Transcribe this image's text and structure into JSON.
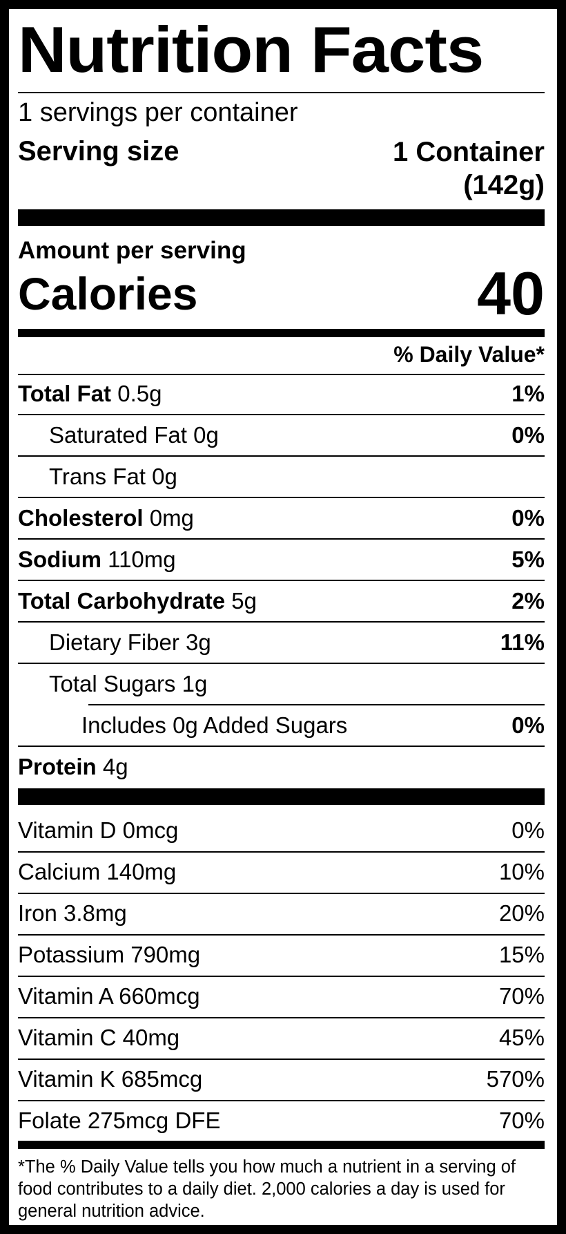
{
  "title": "Nutrition Facts",
  "servings_per_container": "1 servings per container",
  "serving_size_label": "Serving size",
  "serving_size_value_line1": "1 Container",
  "serving_size_value_line2": "(142g)",
  "amount_per_serving": "Amount per serving",
  "calories_label": "Calories",
  "calories_value": "40",
  "daily_value_header": "% Daily Value*",
  "nutrients": [
    {
      "name": "Total Fat",
      "amount": " 0.5g",
      "dv": "1%"
    },
    {
      "name": "Saturated Fat 0g",
      "dv": "0%"
    },
    {
      "name": "Trans Fat 0g",
      "dv": ""
    },
    {
      "name": "Cholesterol",
      "amount": " 0mg",
      "dv": "0%"
    },
    {
      "name": "Sodium",
      "amount": " 110mg",
      "dv": "5%"
    },
    {
      "name": "Total Carbohydrate",
      "amount": " 5g",
      "dv": "2%"
    },
    {
      "name": "Dietary Fiber 3g",
      "dv": "11%"
    },
    {
      "name": "Total Sugars 1g",
      "dv": ""
    },
    {
      "name": "Includes 0g Added Sugars",
      "dv": "0%"
    },
    {
      "name": "Protein",
      "amount": " 4g",
      "dv": ""
    }
  ],
  "vitamins": [
    {
      "name": "Vitamin D 0mcg",
      "dv": "0%"
    },
    {
      "name": "Calcium 140mg",
      "dv": "10%"
    },
    {
      "name": "Iron 3.8mg",
      "dv": "20%"
    },
    {
      "name": "Potassium 790mg",
      "dv": "15%"
    },
    {
      "name": "Vitamin A 660mcg",
      "dv": "70%"
    },
    {
      "name": "Vitamin C 40mg",
      "dv": "45%"
    },
    {
      "name": "Vitamin K 685mcg",
      "dv": "570%"
    },
    {
      "name": "Folate 275mcg DFE",
      "dv": "70%"
    }
  ],
  "footnote": "*The % Daily Value tells you how much a nutrient in a serving of food contributes to a daily diet. 2,000 calories a day is used for general nutrition advice."
}
